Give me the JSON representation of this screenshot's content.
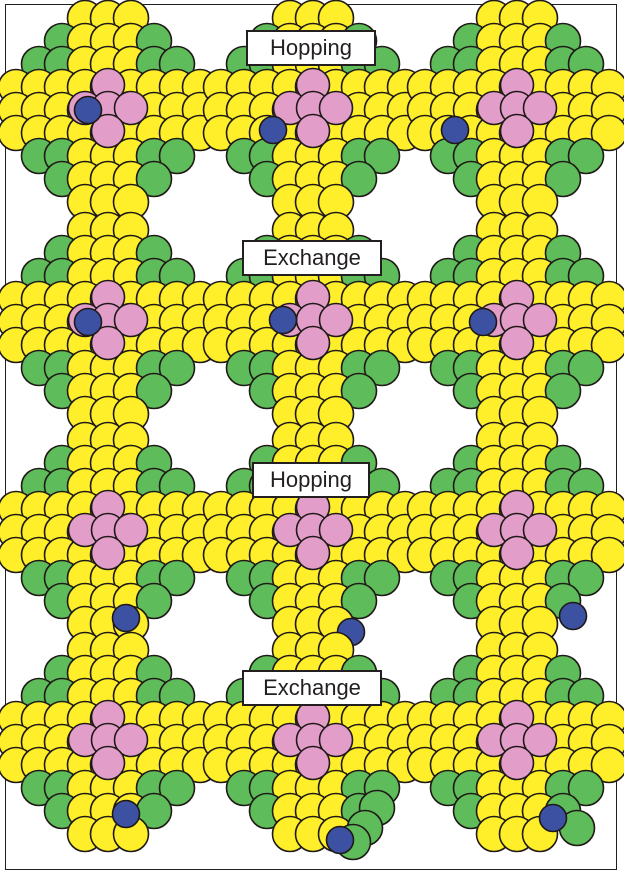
{
  "colors": {
    "yellow": "#ffef2a",
    "green": "#5ebc5b",
    "pink": "#e39dc9",
    "blue": "#3d51a3",
    "outline": "#1f1a17"
  },
  "rows": [
    {
      "label": "Hopping",
      "panels": [
        {
          "adatom": "blue-atom-left-of-cluster"
        },
        {
          "adatom": "blue-atom-lower-left-of-cluster"
        },
        {
          "adatom": "blue-atom-far-lower-left"
        }
      ]
    },
    {
      "label": "Exchange",
      "panels": [
        {
          "adatom": "blue-atom-left-of-cluster"
        },
        {
          "adatom": "blue-atom-in-surface-site"
        },
        {
          "adatom": "blue-atom-exchanged-into-surface"
        }
      ]
    },
    {
      "label": "Hopping",
      "panels": [
        {
          "adatom": "blue-atom-near-bottom"
        },
        {
          "adatom": "blue-atom-at-bottom-edge"
        },
        {
          "adatom": "blue-atom-lower-right"
        }
      ]
    },
    {
      "label": "Exchange",
      "panels": [
        {
          "adatom": "blue-atom-near-bottom"
        },
        {
          "adatom": "blue-atom-exchanged-at-bottom"
        },
        {
          "adatom": "blue-atom-exchanged-lower-right"
        }
      ]
    }
  ]
}
